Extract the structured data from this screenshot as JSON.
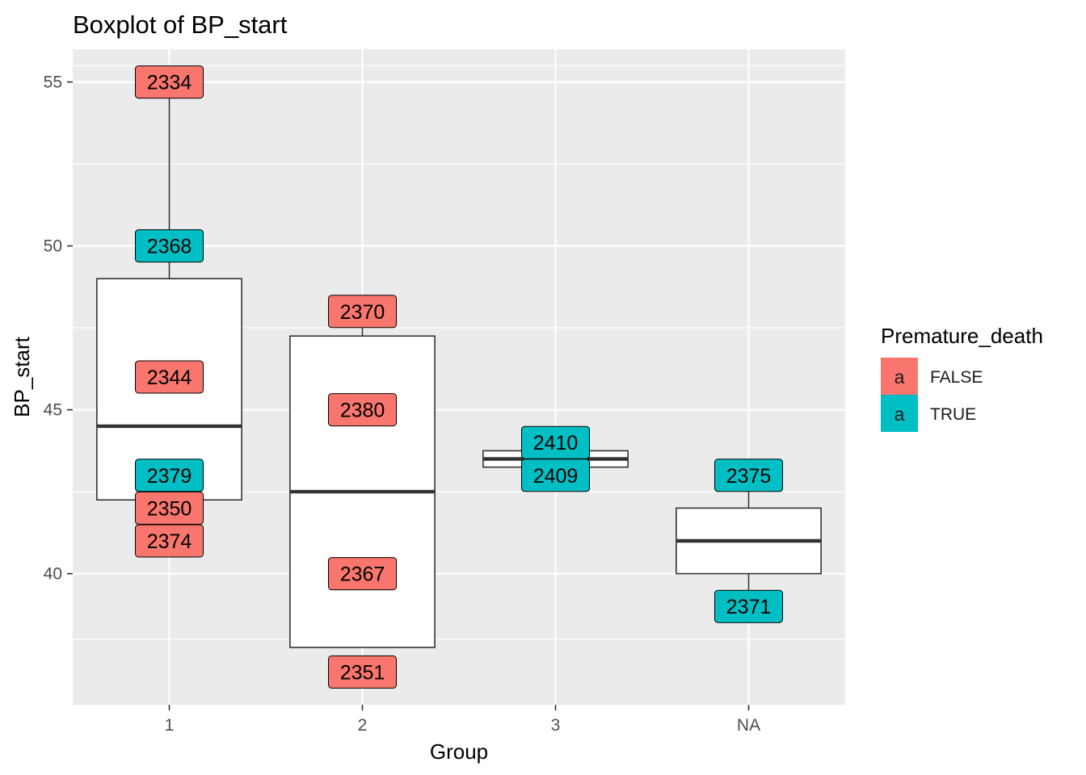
{
  "chart_data": {
    "type": "boxplot",
    "title": "Boxplot of  BP_start",
    "xlabel": "Group",
    "ylabel": "BP_start",
    "categories": [
      "1",
      "2",
      "3",
      "NA"
    ],
    "ylim": [
      36.0,
      56.0
    ],
    "yticks": [
      40,
      45,
      50,
      55
    ],
    "grid": true,
    "panel_background": "#ebebeb",
    "boxes": [
      {
        "category": "1",
        "min": 42.25,
        "q1": 42.25,
        "median": 44.5,
        "q3": 49.0,
        "max": 55.0
      },
      {
        "category": "2",
        "min": 37.75,
        "q1": 37.75,
        "median": 42.5,
        "q3": 47.25,
        "max": 48.0
      },
      {
        "category": "3",
        "min": 43.25,
        "q1": 43.25,
        "median": 43.5,
        "q3": 43.75,
        "max": 43.75
      },
      {
        "category": "NA",
        "min": 39.0,
        "q1": 40.0,
        "median": 41.0,
        "q3": 42.0,
        "max": 43.0
      }
    ],
    "point_labels": [
      {
        "category": "1",
        "y": 55.0,
        "text": "2334",
        "premature_death": "FALSE"
      },
      {
        "category": "1",
        "y": 50.0,
        "text": "2368",
        "premature_death": "TRUE"
      },
      {
        "category": "1",
        "y": 46.0,
        "text": "2344",
        "premature_death": "FALSE"
      },
      {
        "category": "1",
        "y": 43.0,
        "text": "2379",
        "premature_death": "TRUE"
      },
      {
        "category": "1",
        "y": 42.0,
        "text": "2350",
        "premature_death": "FALSE"
      },
      {
        "category": "1",
        "y": 41.0,
        "text": "2374",
        "premature_death": "FALSE"
      },
      {
        "category": "2",
        "y": 48.0,
        "text": "2370",
        "premature_death": "FALSE"
      },
      {
        "category": "2",
        "y": 45.0,
        "text": "2380",
        "premature_death": "FALSE"
      },
      {
        "category": "2",
        "y": 40.0,
        "text": "2367",
        "premature_death": "FALSE"
      },
      {
        "category": "2",
        "y": 37.0,
        "text": "2351",
        "premature_death": "FALSE"
      },
      {
        "category": "3",
        "y": 44.0,
        "text": "2410",
        "premature_death": "TRUE"
      },
      {
        "category": "3",
        "y": 43.0,
        "text": "2409",
        "premature_death": "TRUE"
      },
      {
        "category": "NA",
        "y": 43.0,
        "text": "2375",
        "premature_death": "TRUE"
      },
      {
        "category": "NA",
        "y": 39.0,
        "text": "2371",
        "premature_death": "TRUE"
      }
    ],
    "legend": {
      "title": "Premature_death",
      "placement": "right",
      "key_glyph": "a",
      "entries": [
        {
          "label": "FALSE",
          "color": "#f8766d"
        },
        {
          "label": "TRUE",
          "color": "#00bfc4"
        }
      ]
    }
  }
}
